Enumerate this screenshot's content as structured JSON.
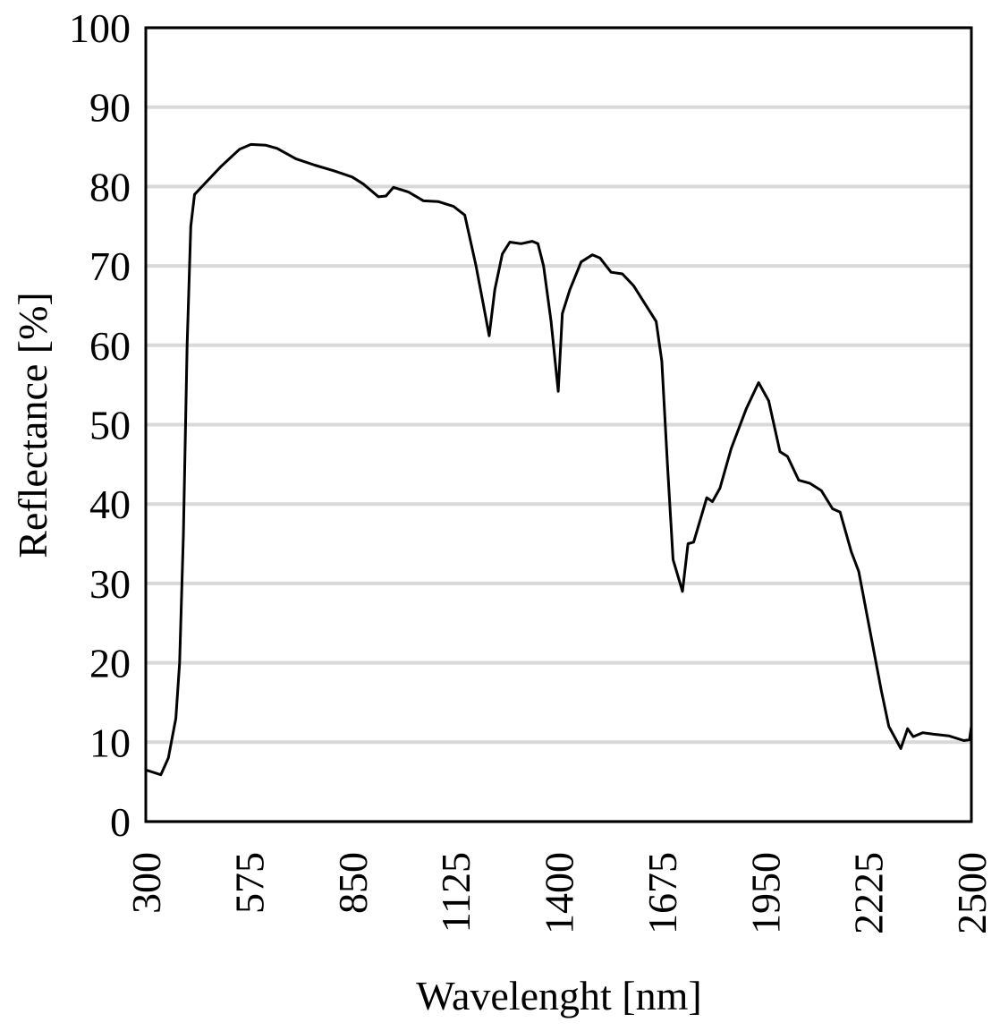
{
  "chart_data": {
    "type": "line",
    "x_label": "Wavelenght [nm]",
    "y_label": "Reflectance [%]",
    "x": [
      300,
      320,
      340,
      360,
      380,
      390,
      400,
      410,
      420,
      430,
      450,
      500,
      550,
      580,
      620,
      650,
      700,
      750,
      800,
      850,
      880,
      920,
      940,
      960,
      1000,
      1040,
      1080,
      1120,
      1150,
      1180,
      1200,
      1215,
      1230,
      1250,
      1270,
      1300,
      1330,
      1345,
      1360,
      1380,
      1399,
      1410,
      1430,
      1460,
      1490,
      1510,
      1540,
      1570,
      1600,
      1640,
      1660,
      1675,
      1690,
      1705,
      1730,
      1745,
      1760,
      1795,
      1810,
      1830,
      1860,
      1900,
      1933,
      1960,
      1990,
      2010,
      2040,
      2070,
      2100,
      2130,
      2150,
      2180,
      2200,
      2230,
      2260,
      2280,
      2312,
      2330,
      2345,
      2370,
      2400,
      2440,
      2480,
      2495,
      2500
    ],
    "values": [
      6.5,
      6.2,
      5.9,
      8,
      13,
      20,
      36,
      60,
      75,
      79,
      80,
      82.5,
      84.7,
      85.3,
      85.2,
      84.8,
      83.5,
      82.7,
      82,
      81.2,
      80.3,
      78.7,
      78.8,
      79.9,
      79.3,
      78.2,
      78.1,
      77.5,
      76.4,
      70,
      65,
      61.2,
      67,
      71.5,
      73,
      72.8,
      73.1,
      72.8,
      70,
      63,
      54.2,
      64,
      67,
      70.5,
      71.4,
      71,
      69.2,
      69,
      67.5,
      64.5,
      63,
      58,
      45,
      33,
      29,
      35,
      35.2,
      40.8,
      40.3,
      42,
      47,
      52,
      55.3,
      53,
      46.6,
      46,
      43,
      42.6,
      41.7,
      39.4,
      39,
      34,
      31.5,
      24,
      16.5,
      12,
      9.2,
      11.7,
      10.7,
      11.2,
      11,
      10.8,
      10.2,
      10.3,
      12
    ],
    "color": "#000000",
    "xlim": [
      300,
      2500
    ],
    "xticks": [
      300,
      575,
      850,
      1125,
      1400,
      1675,
      1950,
      2225,
      2500
    ],
    "ylim": [
      0,
      100
    ],
    "yticks": [
      0,
      10,
      20,
      30,
      40,
      50,
      60,
      70,
      80,
      90,
      100
    ],
    "grid": true
  }
}
